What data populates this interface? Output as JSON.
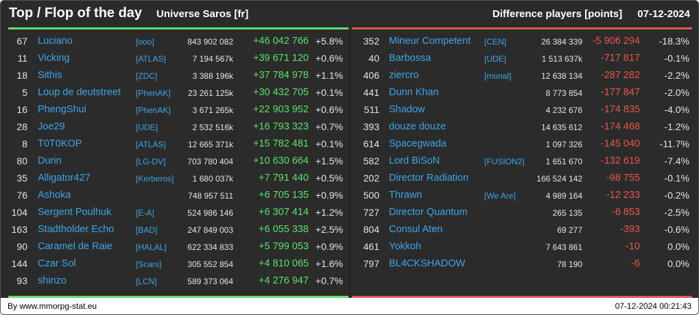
{
  "header": {
    "title": "Top / Flop of the day",
    "universe": "Universe Saros [fr]",
    "subtitle": "Difference players [points]",
    "date": "07-12-2024"
  },
  "colors": {
    "background": "#2b2b2b",
    "top_accent": "#5ee06a",
    "flop_accent": "#e05a50",
    "link": "#3ea6e8"
  },
  "top": [
    {
      "rank": "67",
      "name": "Luciano",
      "alliance": "[ooo]",
      "points": "843 902 082",
      "diff": "+46 042 766",
      "pct": "+5.8%"
    },
    {
      "rank": "11",
      "name": "Vicking",
      "alliance": "[ATLAS]",
      "points": "7 194 567k",
      "diff": "+39 671 120",
      "pct": "+0.6%"
    },
    {
      "rank": "18",
      "name": "Sithis",
      "alliance": "[ZDC]",
      "points": "3 388 196k",
      "diff": "+37 784 978",
      "pct": "+1.1%"
    },
    {
      "rank": "5",
      "name": "Loup de deutstreet",
      "alliance": "[PhenAK]",
      "points": "23 261 125k",
      "diff": "+30 432 705",
      "pct": "+0.1%"
    },
    {
      "rank": "16",
      "name": "PhengShui",
      "alliance": "[PhenAK]",
      "points": "3 671 265k",
      "diff": "+22 903 952",
      "pct": "+0.6%"
    },
    {
      "rank": "28",
      "name": "Joe29",
      "alliance": "[UDE]",
      "points": "2 532 516k",
      "diff": "+16 793 323",
      "pct": "+0.7%"
    },
    {
      "rank": "8",
      "name": "T0T0KOP",
      "alliance": "[ATLAS]",
      "points": "12 665 371k",
      "diff": "+15 782 481",
      "pct": "+0.1%"
    },
    {
      "rank": "80",
      "name": "Durin",
      "alliance": "[LG-DV]",
      "points": "703 780 404",
      "diff": "+10 630 664",
      "pct": "+1.5%"
    },
    {
      "rank": "35",
      "name": "Alligator427",
      "alliance": "[Kerberos]",
      "points": "1 680 037k",
      "diff": "+7 791 440",
      "pct": "+0.5%"
    },
    {
      "rank": "76",
      "name": "Ashoka",
      "alliance": "",
      "points": "748 957 511",
      "diff": "+6 705 135",
      "pct": "+0.9%"
    },
    {
      "rank": "104",
      "name": "Sergent Poulhuk",
      "alliance": "[E-A]",
      "points": "524 986 146",
      "diff": "+6 307 414",
      "pct": "+1.2%"
    },
    {
      "rank": "163",
      "name": "Stadtholder Echo",
      "alliance": "[BAD]",
      "points": "247 849 003",
      "diff": "+6 055 338",
      "pct": "+2.5%"
    },
    {
      "rank": "90",
      "name": "Caramel de Raie",
      "alliance": "[HALAL]",
      "points": "622 334 833",
      "diff": "+5 799 053",
      "pct": "+0.9%"
    },
    {
      "rank": "144",
      "name": "Czar Sol",
      "alliance": "[Scars]",
      "points": "305 552 854",
      "diff": "+4 810 065",
      "pct": "+1.6%"
    },
    {
      "rank": "93",
      "name": "shinzo",
      "alliance": "[LCN]",
      "points": "589 373 064",
      "diff": "+4 276 947",
      "pct": "+0.7%"
    }
  ],
  "flop": [
    {
      "rank": "352",
      "name": "Mineur Competent",
      "alliance": "[CEN]",
      "points": "26 384 339",
      "diff": "-5 906 294",
      "pct": "-18.3%"
    },
    {
      "rank": "40",
      "name": "Barbossa",
      "alliance": "[UDE]",
      "points": "1 513 637k",
      "diff": "-717 817",
      "pct": "-0.1%"
    },
    {
      "rank": "406",
      "name": "ziercro",
      "alliance": "[monal]",
      "points": "12 638 134",
      "diff": "-287 282",
      "pct": "-2.2%"
    },
    {
      "rank": "441",
      "name": "Dunn Khan",
      "alliance": "",
      "points": "8 773 854",
      "diff": "-177 847",
      "pct": "-2.0%"
    },
    {
      "rank": "511",
      "name": "Shadow",
      "alliance": "",
      "points": "4 232 676",
      "diff": "-174 835",
      "pct": "-4.0%"
    },
    {
      "rank": "393",
      "name": "douze douze",
      "alliance": "",
      "points": "14 635 612",
      "diff": "-174 468",
      "pct": "-1.2%"
    },
    {
      "rank": "614",
      "name": "Spacegwada",
      "alliance": "",
      "points": "1 097 326",
      "diff": "-145 040",
      "pct": "-11.7%"
    },
    {
      "rank": "582",
      "name": "Lord BiSoN",
      "alliance": "[FUSION2]",
      "points": "1 651 670",
      "diff": "-132 619",
      "pct": "-7.4%"
    },
    {
      "rank": "202",
      "name": "Director Radiation",
      "alliance": "",
      "points": "166 524 142",
      "diff": "-98 755",
      "pct": "-0.1%"
    },
    {
      "rank": "500",
      "name": "Thrawn",
      "alliance": "[We Are]",
      "points": "4 989 164",
      "diff": "-12 233",
      "pct": "-0.2%"
    },
    {
      "rank": "727",
      "name": "Director Quantum",
      "alliance": "",
      "points": "265 135",
      "diff": "-6 853",
      "pct": "-2.5%"
    },
    {
      "rank": "804",
      "name": "Consul Aten",
      "alliance": "",
      "points": "69 277",
      "diff": "-393",
      "pct": "-0.6%"
    },
    {
      "rank": "461",
      "name": "Yokkoh",
      "alliance": "",
      "points": "7 643 861",
      "diff": "-10",
      "pct": "0.0%"
    },
    {
      "rank": "797",
      "name": "BL4CKSHADOW",
      "alliance": "",
      "points": "78 190",
      "diff": "-6",
      "pct": "0.0%"
    }
  ],
  "footer": {
    "credit": "By www.mmorpg-stat.eu",
    "timestamp": "07-12-2024 00:21:43"
  }
}
